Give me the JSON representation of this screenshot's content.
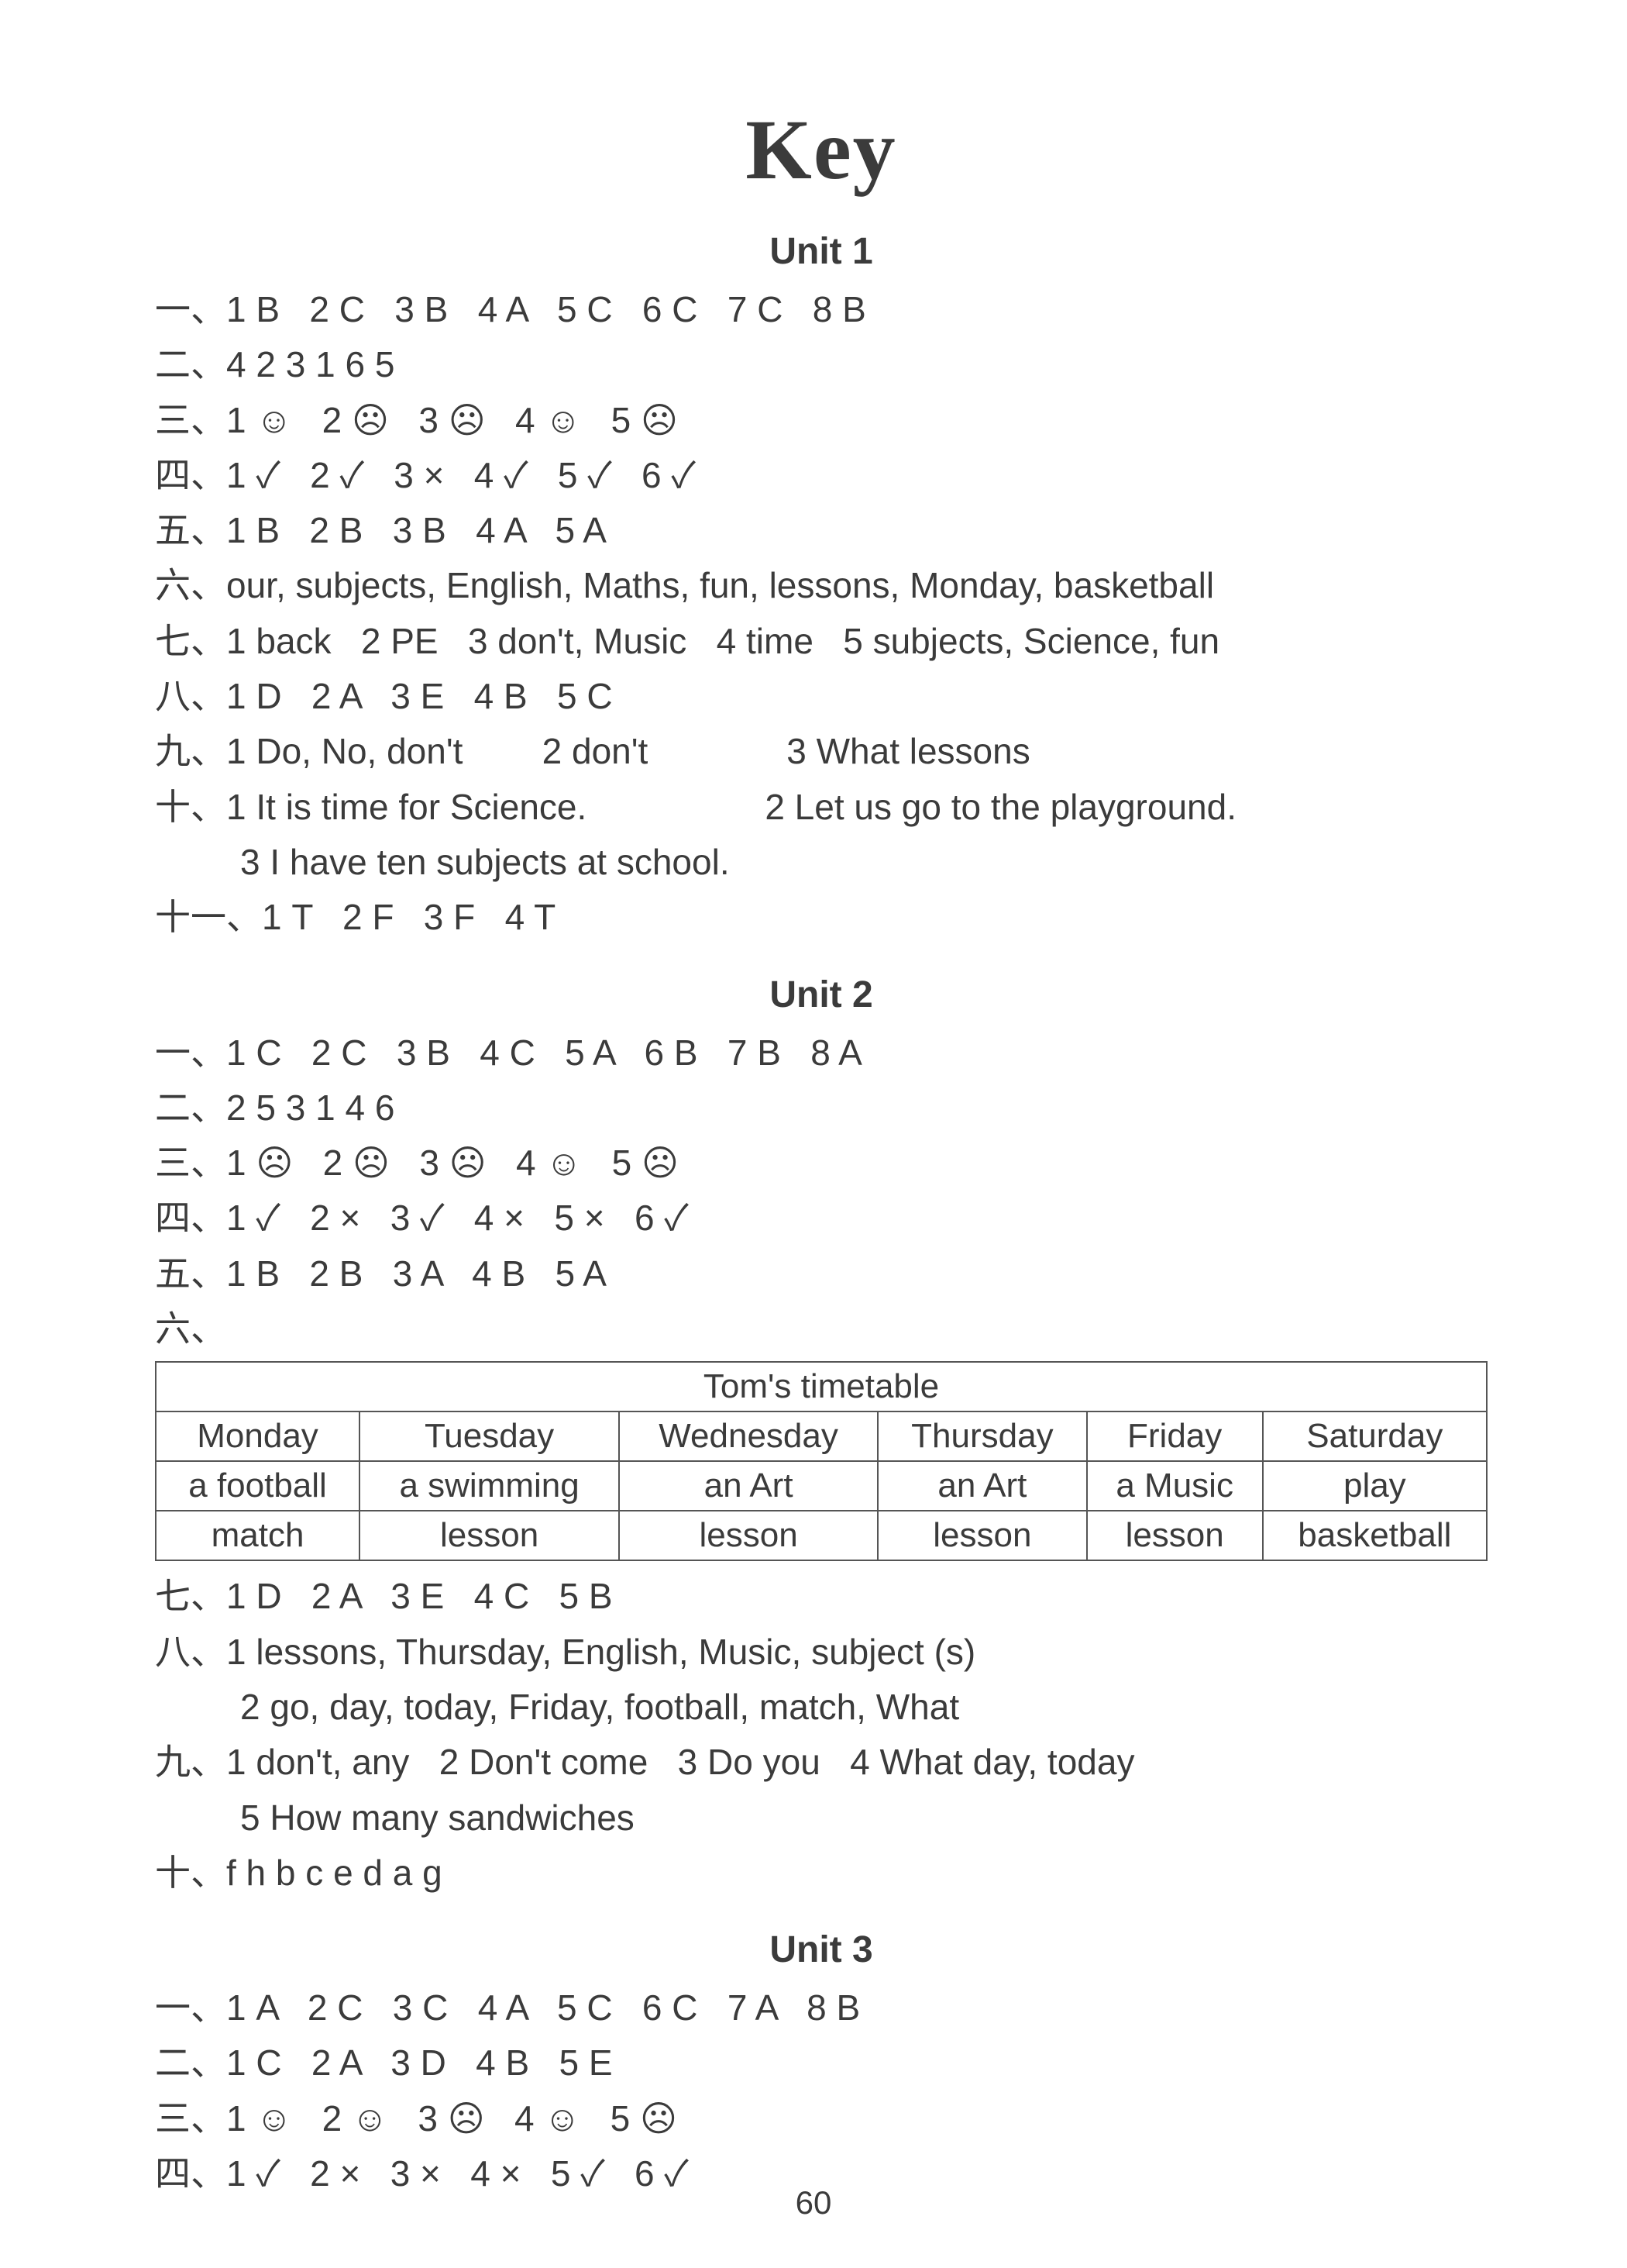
{
  "page_number": "60",
  "title": "Key",
  "icons": {
    "smile": "☺",
    "frown": "☹",
    "check": "✓",
    "cross": "×"
  },
  "units": {
    "u1": {
      "heading": "Unit 1",
      "r1": "一、1 B   2 C   3 B   4 A   5 C   6 C   7 C   8 B",
      "r2": "二、4 2 3 1 6 5",
      "r3": "三、1 ☺   2 ☹   3 ☹   4 ☺   5 ☹",
      "r4": "四、1 ✓   2 ✓   3 ×   4 ✓   5 ✓   6 ✓",
      "r5": "五、1 B   2 B   3 B   4 A   5 A",
      "r6": "六、our, subjects, English, Maths, fun, lessons, Monday, basketball",
      "r7": "七、1 back   2 PE   3 don't, Music   4 time   5 subjects, Science, fun",
      "r8": "八、1 D   2 A   3 E   4 B   5 C",
      "r9": "九、1 Do, No, don't        2 don't              3 What lessons",
      "r10a": "十、1 It is time for Science.                  2 Let us go to the playground.",
      "r10b": "3 I have ten subjects at school.",
      "r11": "十一、1 T   2 F   3 F   4 T"
    },
    "u2": {
      "heading": "Unit 2",
      "r1": "一、1 C   2 C   3 B   4 C   5 A   6 B   7 B   8 A",
      "r2": "二、2 5 3 1 4 6",
      "r3": "三、1 ☹   2 ☹   3 ☹   4 ☺   5 ☹",
      "r4": "四、1 ✓   2 ×   3 ✓   4 ×   5 ×   6 ✓",
      "r5": "五、1 B   2 B   3 A   4 B   5 A",
      "r6label": "六、",
      "table": {
        "caption": "Tom's timetable",
        "headers": [
          "Monday",
          "Tuesday",
          "Wednesday",
          "Thursday",
          "Friday",
          "Saturday"
        ],
        "row1": [
          "a football",
          "a swimming",
          "an Art",
          "an Art",
          "a Music",
          "play"
        ],
        "row2": [
          "match",
          "lesson",
          "lesson",
          "lesson",
          "lesson",
          "basketball"
        ]
      },
      "r7": "七、1 D   2 A   3 E   4 C   5 B",
      "r8a": "八、1 lessons, Thursday, English, Music, subject (s)",
      "r8b": "2 go, day, today, Friday, football, match, What",
      "r9a": "九、1 don't, any   2 Don't come   3 Do you   4 What day, today",
      "r9b": "5 How many sandwiches",
      "r10": "十、f h b c e d a g"
    },
    "u3": {
      "heading": "Unit 3",
      "r1": "一、1 A   2 C   3 C   4 A   5 C   6 C   7 A   8 B",
      "r2": "二、1 C   2 A   3 D   4 B   5 E",
      "r3": "三、1 ☺   2 ☺   3 ☹   4 ☺   5 ☹",
      "r4": "四、1 ✓   2 ×   3 ×   4 ×   5 ✓   6 ✓"
    }
  }
}
